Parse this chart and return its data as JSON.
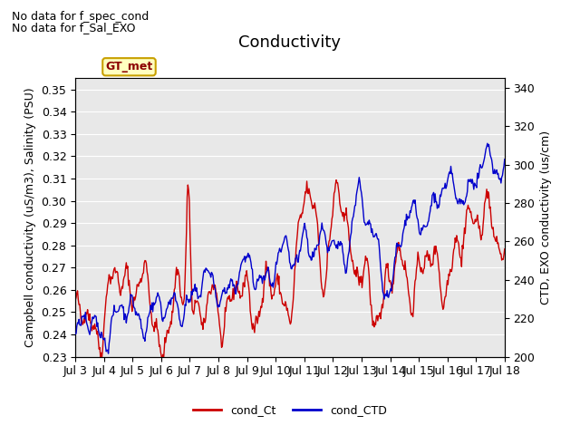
{
  "title": "Conductivity",
  "ylabel_left": "Campbell conductivity (uS/m3), Salinity (PSU)",
  "ylabel_right": "CTD, EXO conductivity (us/cm)",
  "annotation1": "No data for f_spec_cond",
  "annotation2": "No data for f_Sal_EXO",
  "legend_box_label": "GT_met",
  "legend_box_color": "#ffffc0",
  "legend_box_edge": "#c8a000",
  "legend_box_text": "#8b0000",
  "ylim_left": [
    0.23,
    0.355
  ],
  "ylim_right": [
    200,
    345
  ],
  "yticks_left": [
    0.23,
    0.24,
    0.25,
    0.26,
    0.27,
    0.28,
    0.29,
    0.3,
    0.31,
    0.32,
    0.33,
    0.34,
    0.35
  ],
  "yticks_right": [
    200,
    220,
    240,
    260,
    280,
    300,
    320,
    340
  ],
  "xtick_labels": [
    "Jul 3",
    "Jul 4",
    "Jul 5",
    "Jul 6",
    "Jul 7",
    "Jul 8",
    "Jul 9",
    "Jul 10",
    "Jul 11",
    "Jul 12",
    "Jul 13",
    "Jul 14",
    "Jul 15",
    "Jul 16",
    "Jul 17",
    "Jul 18"
  ],
  "color_red": "#cc0000",
  "color_blue": "#0000cc",
  "bg_color": "#e8e8e8",
  "legend_label_red": "cond_Ct",
  "legend_label_blue": "cond_CTD",
  "title_fontsize": 13,
  "label_fontsize": 9,
  "tick_fontsize": 9,
  "annot_fontsize": 9
}
